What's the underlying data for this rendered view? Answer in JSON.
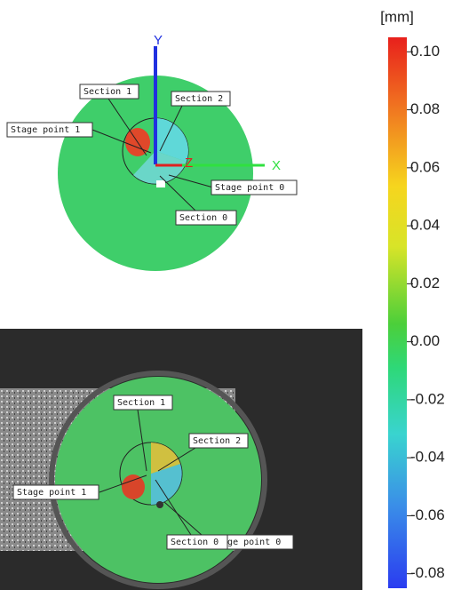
{
  "colorbar": {
    "unit": "[mm]",
    "range": [
      -0.085,
      0.105
    ],
    "ticks": [
      {
        "value": 0.1,
        "label": "0.10"
      },
      {
        "value": 0.08,
        "label": "0.08"
      },
      {
        "value": 0.06,
        "label": "0.06"
      },
      {
        "value": 0.04,
        "label": "0.04"
      },
      {
        "value": 0.02,
        "label": "0.02"
      },
      {
        "value": 0,
        "label": "0.00"
      },
      {
        "value": -0.02,
        "label": "-0.02"
      },
      {
        "value": -0.04,
        "label": "-0.04"
      },
      {
        "value": -0.06,
        "label": "-0.06"
      },
      {
        "value": -0.08,
        "label": "-0.08"
      }
    ]
  },
  "top_view": {
    "axes": {
      "y": "Y",
      "z": "Z",
      "x": "X"
    },
    "labels": {
      "section_1": "Section 1",
      "section_2": "Section 2",
      "stage_point_1": "Stage point 1",
      "stage_point_0": "Stage point 0",
      "section_0": "Section 0"
    }
  },
  "bottom_view": {
    "labels": {
      "section_1": "Section 1",
      "section_2": "Section 2",
      "stage_point_1": "Stage point 1",
      "stage_point_0": "Stage point 0",
      "section_0": "Section 0"
    }
  }
}
